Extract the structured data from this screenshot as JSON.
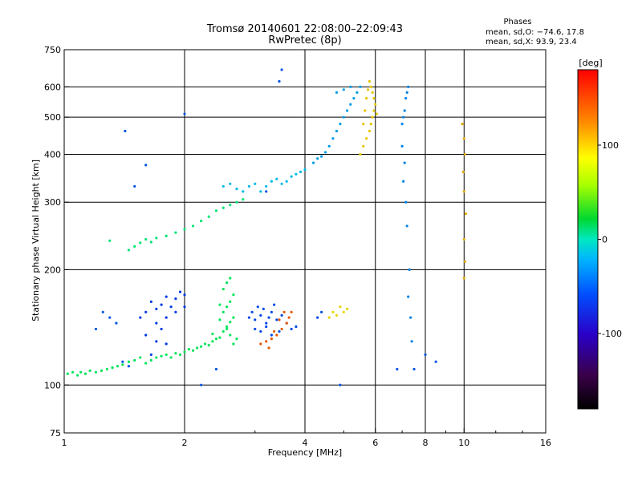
{
  "chart_data": {
    "type": "scatter",
    "title": "Tromsø 20140601 22:08:00–22:09:43",
    "subtitle": "RwPretec (8p)",
    "xlabel": "Frequency [MHz]",
    "ylabel": "Stationary phase Virtual Height [km]",
    "x_scale": "log",
    "y_scale": "log",
    "xlim": [
      1,
      16
    ],
    "ylim": [
      75,
      750
    ],
    "x_ticks": [
      1,
      2,
      4,
      6,
      8,
      10,
      16
    ],
    "y_ticks": [
      75,
      100,
      200,
      300,
      400,
      500,
      600,
      750
    ],
    "x_gridlines": [
      2,
      4,
      6,
      8,
      10
    ],
    "y_gridlines": [
      100,
      200,
      300,
      400,
      500,
      600
    ],
    "grid": true,
    "legend": {
      "heading": "Phases",
      "lines": [
        "mean, sd,O: −74.6, 17.8",
        "mean, sd,X:  93.9, 23.4"
      ],
      "placement": "top-right"
    },
    "colorbar": {
      "label": "[deg]",
      "range": [
        -180,
        180
      ],
      "ticks": [
        100,
        0,
        -100
      ],
      "colormap": "rainbow"
    },
    "series": [
      {
        "points": [
          [
            1.02,
            107
          ],
          [
            1.05,
            108
          ],
          [
            1.08,
            106
          ],
          [
            1.1,
            108
          ],
          [
            1.13,
            107
          ],
          [
            1.16,
            109
          ],
          [
            1.2,
            108
          ],
          [
            1.24,
            109
          ],
          [
            1.28,
            110
          ],
          [
            1.32,
            111
          ],
          [
            1.36,
            112
          ],
          [
            1.4,
            113
          ],
          [
            1.45,
            115
          ],
          [
            1.5,
            116
          ],
          [
            1.55,
            118
          ],
          [
            1.6,
            114
          ],
          [
            1.65,
            116
          ],
          [
            1.7,
            118
          ],
          [
            1.75,
            119
          ],
          [
            1.8,
            120
          ],
          [
            1.85,
            118
          ],
          [
            1.9,
            121
          ],
          [
            1.95,
            120
          ],
          [
            2.0,
            122
          ],
          [
            2.05,
            124
          ],
          [
            2.1,
            123
          ],
          [
            2.15,
            125
          ],
          [
            2.2,
            126
          ],
          [
            2.25,
            128
          ],
          [
            2.3,
            127
          ],
          [
            2.35,
            130
          ],
          [
            2.4,
            132
          ],
          [
            2.45,
            133
          ],
          [
            2.5,
            138
          ],
          [
            2.55,
            142
          ],
          [
            2.6,
            146
          ],
          [
            2.65,
            150
          ],
          [
            2.45,
            148
          ],
          [
            2.5,
            155
          ],
          [
            2.55,
            160
          ],
          [
            2.6,
            165
          ],
          [
            2.65,
            172
          ],
          [
            2.5,
            178
          ],
          [
            2.55,
            185
          ],
          [
            2.6,
            190
          ],
          [
            2.45,
            162
          ],
          [
            2.55,
            140
          ],
          [
            2.6,
            135
          ],
          [
            2.65,
            128
          ],
          [
            2.7,
            132
          ],
          [
            2.35,
            136
          ]
        ],
        "phase": -10
      },
      {
        "points": [
          [
            1.55,
            150
          ],
          [
            1.6,
            155
          ],
          [
            1.65,
            165
          ],
          [
            1.7,
            158
          ],
          [
            1.75,
            162
          ],
          [
            1.8,
            170
          ],
          [
            1.85,
            160
          ],
          [
            1.9,
            168
          ],
          [
            1.95,
            175
          ],
          [
            2.0,
            172
          ],
          [
            1.7,
            145
          ],
          [
            1.75,
            140
          ],
          [
            1.8,
            150
          ],
          [
            1.9,
            155
          ],
          [
            2.0,
            160
          ],
          [
            1.6,
            135
          ],
          [
            1.7,
            130
          ],
          [
            1.8,
            128
          ],
          [
            1.65,
            120
          ]
        ],
        "phase": -120
      },
      {
        "points": [
          [
            2.9,
            150
          ],
          [
            2.95,
            155
          ],
          [
            3.0,
            148
          ],
          [
            3.05,
            160
          ],
          [
            3.1,
            152
          ],
          [
            3.15,
            158
          ],
          [
            3.2,
            145
          ],
          [
            3.25,
            150
          ],
          [
            3.3,
            155
          ],
          [
            3.35,
            162
          ],
          [
            3.4,
            148
          ],
          [
            3.5,
            152
          ],
          [
            3.6,
            145
          ],
          [
            3.7,
            140
          ],
          [
            3.8,
            142
          ],
          [
            3.0,
            140
          ],
          [
            3.1,
            138
          ],
          [
            3.2,
            142
          ],
          [
            3.3,
            135
          ],
          [
            3.45,
            138
          ],
          [
            4.3,
            150
          ],
          [
            4.4,
            155
          ]
        ],
        "phase": -115
      },
      {
        "points": [
          [
            3.1,
            128
          ],
          [
            3.2,
            130
          ],
          [
            3.3,
            132
          ],
          [
            3.4,
            135
          ],
          [
            3.5,
            140
          ],
          [
            3.6,
            145
          ],
          [
            3.65,
            150
          ],
          [
            3.55,
            155
          ],
          [
            3.45,
            148
          ],
          [
            3.7,
            155
          ],
          [
            3.35,
            138
          ],
          [
            3.25,
            125
          ]
        ],
        "phase": 150
      },
      {
        "points": [
          [
            4.6,
            150
          ],
          [
            4.7,
            155
          ],
          [
            4.8,
            152
          ],
          [
            4.9,
            160
          ],
          [
            5.0,
            155
          ],
          [
            5.1,
            158
          ]
        ],
        "phase": 105
      },
      {
        "points": [
          [
            1.3,
            238
          ],
          [
            1.45,
            225
          ],
          [
            1.5,
            230
          ],
          [
            1.55,
            235
          ],
          [
            1.6,
            240
          ],
          [
            1.65,
            236
          ],
          [
            1.7,
            242
          ],
          [
            1.8,
            245
          ],
          [
            1.9,
            250
          ],
          [
            2.0,
            255
          ],
          [
            2.1,
            260
          ],
          [
            2.2,
            268
          ],
          [
            2.3,
            275
          ],
          [
            2.4,
            285
          ],
          [
            2.5,
            290
          ],
          [
            2.6,
            295
          ],
          [
            2.7,
            300
          ],
          [
            2.8,
            305
          ]
        ],
        "phase": -20
      },
      {
        "points": [
          [
            2.5,
            330
          ],
          [
            2.6,
            335
          ],
          [
            2.7,
            325
          ],
          [
            2.8,
            320
          ],
          [
            2.9,
            330
          ],
          [
            3.0,
            335
          ],
          [
            3.1,
            320
          ],
          [
            3.2,
            330
          ],
          [
            3.3,
            340
          ],
          [
            3.4,
            345
          ],
          [
            3.5,
            335
          ],
          [
            3.6,
            340
          ],
          [
            3.7,
            350
          ],
          [
            3.8,
            355
          ],
          [
            3.9,
            360
          ],
          [
            4.0,
            365
          ]
        ],
        "phase": -75
      },
      {
        "points": [
          [
            4.2,
            380
          ],
          [
            4.3,
            390
          ],
          [
            4.4,
            395
          ],
          [
            4.5,
            405
          ],
          [
            4.6,
            420
          ],
          [
            4.7,
            440
          ],
          [
            4.8,
            460
          ],
          [
            4.9,
            480
          ],
          [
            5.0,
            500
          ],
          [
            5.1,
            520
          ],
          [
            5.2,
            540
          ],
          [
            5.3,
            560
          ],
          [
            5.4,
            580
          ],
          [
            5.5,
            600
          ],
          [
            5.2,
            600
          ],
          [
            5.0,
            590
          ],
          [
            4.8,
            580
          ]
        ],
        "phase": -85
      },
      {
        "points": [
          [
            5.5,
            400
          ],
          [
            5.6,
            420
          ],
          [
            5.7,
            440
          ],
          [
            5.8,
            460
          ],
          [
            5.85,
            480
          ],
          [
            5.9,
            500
          ],
          [
            5.95,
            520
          ],
          [
            6.0,
            540
          ],
          [
            5.95,
            560
          ],
          [
            5.9,
            580
          ],
          [
            5.85,
            600
          ],
          [
            5.8,
            620
          ],
          [
            5.75,
            590
          ],
          [
            5.7,
            560
          ],
          [
            5.65,
            520
          ],
          [
            5.6,
            480
          ],
          [
            6.05,
            510
          ]
        ],
        "phase": 110
      },
      {
        "points": [
          [
            7.0,
            480
          ],
          [
            7.05,
            500
          ],
          [
            7.1,
            520
          ],
          [
            7.15,
            560
          ],
          [
            7.2,
            580
          ],
          [
            7.25,
            600
          ],
          [
            7.0,
            420
          ],
          [
            7.1,
            380
          ],
          [
            7.05,
            340
          ],
          [
            7.15,
            300
          ],
          [
            7.2,
            260
          ],
          [
            7.3,
            200
          ],
          [
            7.25,
            170
          ],
          [
            7.35,
            150
          ],
          [
            7.4,
            130
          ]
        ],
        "phase": -95
      },
      {
        "points": [
          [
            9.9,
            480
          ],
          [
            10.0,
            440
          ],
          [
            10.05,
            400
          ],
          [
            9.95,
            360
          ],
          [
            10.0,
            320
          ],
          [
            10.1,
            280
          ],
          [
            10.0,
            240
          ],
          [
            10.05,
            210
          ],
          [
            10.0,
            190
          ]
        ],
        "phase": 120
      },
      {
        "points": [
          [
            1.25,
            155
          ],
          [
            1.3,
            150
          ],
          [
            1.35,
            145
          ],
          [
            1.2,
            140
          ],
          [
            1.4,
            115
          ],
          [
            1.45,
            112
          ],
          [
            2.2,
            100
          ],
          [
            2.4,
            110
          ],
          [
            4.9,
            100
          ],
          [
            6.8,
            110
          ],
          [
            8.0,
            120
          ],
          [
            8.5,
            115
          ],
          [
            7.5,
            110
          ],
          [
            1.42,
            460
          ],
          [
            1.5,
            330
          ],
          [
            1.6,
            375
          ],
          [
            2.0,
            510
          ],
          [
            3.2,
            320
          ],
          [
            3.45,
            620
          ],
          [
            3.5,
            665
          ]
        ],
        "phase": -110
      }
    ]
  }
}
